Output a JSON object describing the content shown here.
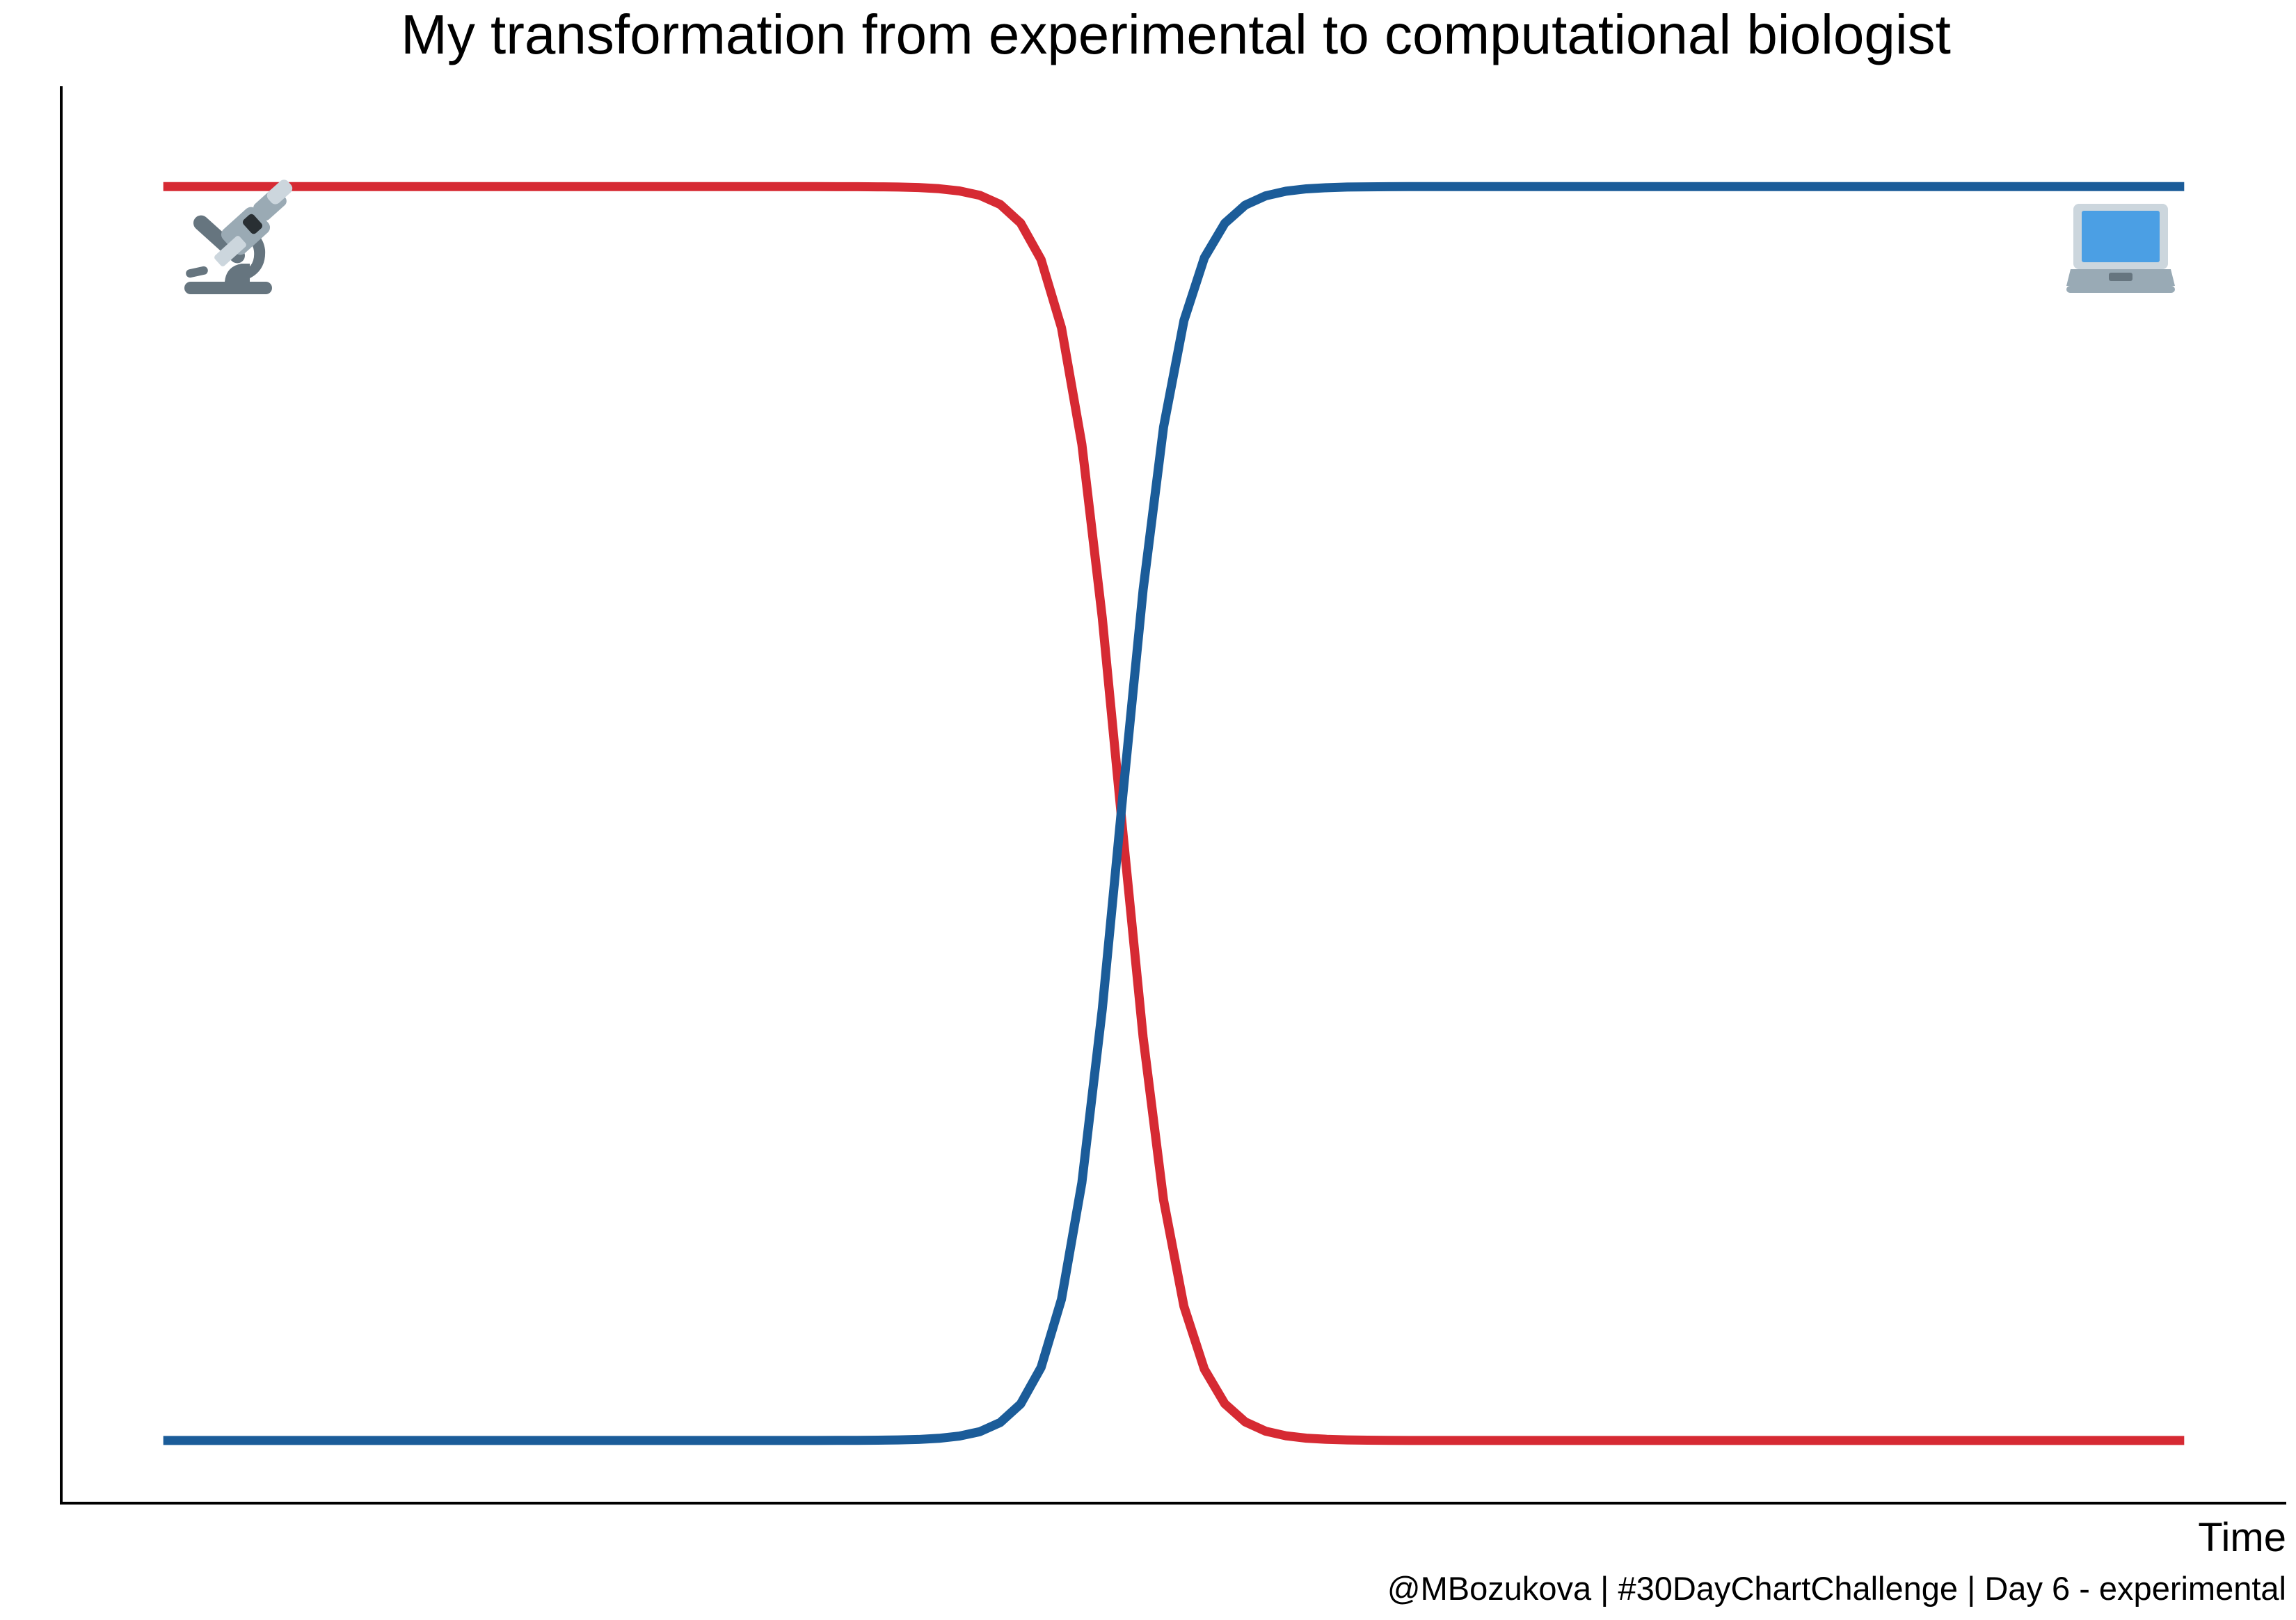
{
  "chart_data": {
    "type": "line",
    "title": "My transformation from experimental to computational biologist",
    "subtitle": "",
    "xlabel": "Time",
    "ylabel": "",
    "caption": "@MBozukova | #30DayChartChallenge | Day 6 - experimental",
    "x_ticks_visible": false,
    "y_ticks_visible": false,
    "grid": false,
    "legend": "none",
    "x": [
      0,
      1,
      2,
      3,
      4,
      5,
      6,
      7,
      8,
      9,
      10,
      11,
      12,
      13,
      14,
      15,
      16,
      17,
      18,
      19,
      20,
      21,
      22,
      23,
      24,
      25,
      26,
      27,
      28,
      29,
      30,
      31,
      32,
      33,
      34,
      35,
      36,
      37,
      38,
      39,
      40,
      41,
      42,
      43,
      44,
      45,
      46,
      47,
      48,
      49,
      50,
      51,
      52,
      53,
      54,
      55,
      56,
      57,
      58,
      59,
      60,
      61,
      62,
      63,
      64,
      65,
      66,
      67,
      68,
      69,
      70,
      71,
      72,
      73,
      74,
      75,
      76,
      77,
      78,
      79,
      80,
      81,
      82,
      83,
      84,
      85,
      86,
      87,
      88,
      89,
      90,
      91,
      92,
      93,
      94,
      95,
      96,
      97,
      98,
      99
    ],
    "xlim": [
      -5,
      104
    ],
    "ylim": [
      -0.05,
      1.08
    ],
    "series": [
      {
        "color": "#d62a33",
        "values": [
          1,
          1,
          1,
          1,
          1,
          1,
          1,
          1,
          1,
          1,
          1,
          1,
          1,
          1,
          1,
          1,
          1,
          1,
          1,
          1,
          1,
          1,
          1,
          1,
          1,
          1,
          1,
          1,
          1,
          1,
          1,
          1,
          1,
          0.9999,
          0.9999,
          0.9998,
          0.9996,
          0.9992,
          0.9983,
          0.9965,
          0.993,
          0.9857,
          0.9709,
          0.9418,
          0.8874,
          0.7944,
          0.6559,
          0.4864,
          0.3215,
          0.1919,
          0.1069,
          0.0568,
          0.0293,
          0.0148,
          0.0074,
          0.0037,
          0.0018,
          0.0009,
          0.0004,
          0.0002,
          0.0001,
          0,
          0,
          0,
          0,
          0,
          0,
          0,
          0,
          0,
          0,
          0,
          0,
          0,
          0,
          0,
          0,
          0,
          0,
          0,
          0,
          0,
          0,
          0,
          0,
          0,
          0,
          0,
          0,
          0,
          0,
          0,
          0,
          0,
          0,
          0,
          0,
          0,
          0,
          0
        ],
        "icon": "microscope-icon",
        "icon_position": "top-left"
      },
      {
        "color": "#1b5c99",
        "values": [
          0,
          0,
          0,
          0,
          0,
          0,
          0,
          0,
          0,
          0,
          0,
          0,
          0,
          0,
          0,
          0,
          0,
          0,
          0,
          0,
          0,
          0,
          0,
          0,
          0,
          0,
          0,
          0,
          0,
          0,
          0,
          0,
          0,
          0.0001,
          0.0001,
          0.0002,
          0.0004,
          0.0008,
          0.0017,
          0.0035,
          0.007,
          0.0143,
          0.0291,
          0.0582,
          0.1126,
          0.2056,
          0.3441,
          0.5136,
          0.6785,
          0.8081,
          0.8931,
          0.9432,
          0.9707,
          0.9852,
          0.9926,
          0.9963,
          0.9982,
          0.9991,
          0.9996,
          0.9998,
          0.9999,
          1,
          1,
          1,
          1,
          1,
          1,
          1,
          1,
          1,
          1,
          1,
          1,
          1,
          1,
          1,
          1,
          1,
          1,
          1,
          1,
          1,
          1,
          1,
          1,
          1,
          1,
          1,
          1,
          1,
          1,
          1,
          1,
          1,
          1,
          1,
          1,
          1,
          1,
          1
        ],
        "icon": "laptop-icon",
        "icon_position": "top-right"
      }
    ]
  }
}
